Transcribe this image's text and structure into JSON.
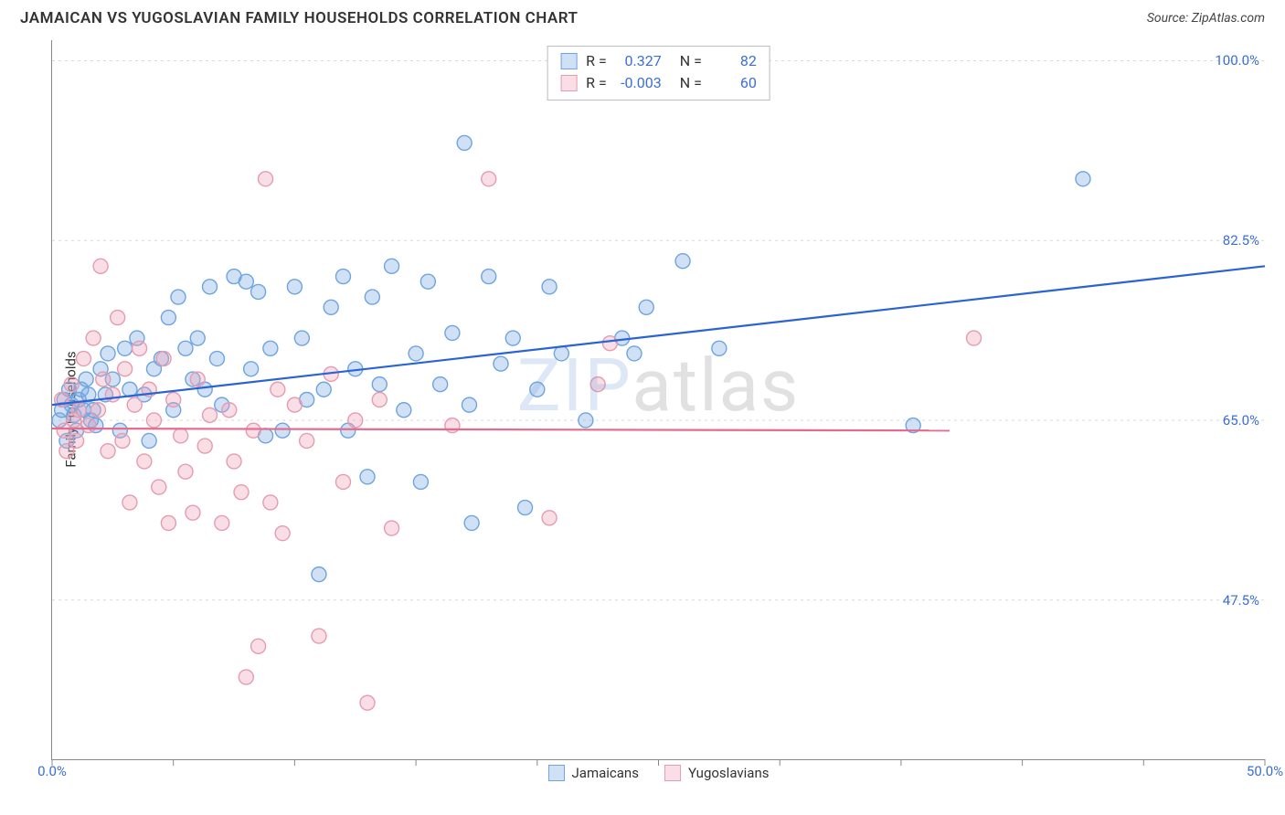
{
  "header": {
    "title": "JAMAICAN VS YUGOSLAVIAN FAMILY HOUSEHOLDS CORRELATION CHART",
    "source_prefix": "Source: ",
    "source_name": "ZipAtlas.com"
  },
  "chart": {
    "type": "scatter",
    "ylabel": "Family Households",
    "watermark_blue": "ZIP",
    "watermark_gray": "atlas",
    "background_color": "#ffffff",
    "grid_color": "#d9d9d9",
    "axis_color": "#888888",
    "tick_label_color": "#3b6fd6",
    "xlim": [
      0,
      50
    ],
    "ylim": [
      32,
      102
    ],
    "x_ticks": [
      0,
      5,
      10,
      15,
      20,
      25,
      30,
      35,
      40,
      45,
      50
    ],
    "x_tick_labels": {
      "0": "0.0%",
      "50": "50.0%"
    },
    "y_gridlines": [
      47.5,
      65.0,
      82.5,
      100.0
    ],
    "y_tick_labels": [
      "47.5%",
      "65.0%",
      "82.5%",
      "100.0%"
    ],
    "marker_radius": 8,
    "marker_stroke_width": 1.4,
    "line_width": 2.2,
    "series": [
      {
        "name": "Jamaicans",
        "fill_color": "rgba(120,170,230,0.35)",
        "stroke_color": "#6fa4df",
        "line_color": "#2a63d4",
        "R": "0.327",
        "N": "82",
        "trend": {
          "x1": 0,
          "y1": 66.5,
          "x2": 50,
          "y2": 80.0
        },
        "points": [
          [
            0.3,
            65.0
          ],
          [
            0.4,
            66.0
          ],
          [
            0.5,
            67.0
          ],
          [
            0.6,
            63.0
          ],
          [
            0.7,
            68.0
          ],
          [
            0.8,
            66.5
          ],
          [
            0.9,
            65.5
          ],
          [
            1.0,
            64.0
          ],
          [
            1.1,
            67.0
          ],
          [
            1.2,
            68.0
          ],
          [
            1.3,
            66.0
          ],
          [
            1.4,
            69.0
          ],
          [
            1.5,
            67.5
          ],
          [
            1.6,
            65.0
          ],
          [
            1.7,
            66.0
          ],
          [
            1.8,
            64.5
          ],
          [
            2.0,
            70.0
          ],
          [
            2.2,
            67.5
          ],
          [
            2.3,
            71.5
          ],
          [
            2.5,
            69.0
          ],
          [
            2.8,
            64.0
          ],
          [
            3.0,
            72.0
          ],
          [
            3.2,
            68.0
          ],
          [
            3.5,
            73.0
          ],
          [
            3.8,
            67.5
          ],
          [
            4.0,
            63.0
          ],
          [
            4.2,
            70.0
          ],
          [
            4.5,
            71.0
          ],
          [
            4.8,
            75.0
          ],
          [
            5.0,
            66.0
          ],
          [
            5.2,
            77.0
          ],
          [
            5.5,
            72.0
          ],
          [
            5.8,
            69.0
          ],
          [
            6.0,
            73.0
          ],
          [
            6.3,
            68.0
          ],
          [
            6.5,
            78.0
          ],
          [
            6.8,
            71.0
          ],
          [
            7.0,
            66.5
          ],
          [
            7.5,
            79.0
          ],
          [
            8.0,
            78.5
          ],
          [
            8.2,
            70.0
          ],
          [
            8.5,
            77.5
          ],
          [
            8.8,
            63.5
          ],
          [
            9.0,
            72.0
          ],
          [
            9.5,
            64.0
          ],
          [
            10.0,
            78.0
          ],
          [
            10.3,
            73.0
          ],
          [
            10.5,
            67.0
          ],
          [
            11.0,
            50.0
          ],
          [
            11.2,
            68.0
          ],
          [
            11.5,
            76.0
          ],
          [
            12.0,
            79.0
          ],
          [
            12.2,
            64.0
          ],
          [
            12.5,
            70.0
          ],
          [
            13.0,
            59.5
          ],
          [
            13.2,
            77.0
          ],
          [
            13.5,
            68.5
          ],
          [
            14.0,
            80.0
          ],
          [
            14.5,
            66.0
          ],
          [
            15.0,
            71.5
          ],
          [
            15.2,
            59.0
          ],
          [
            15.5,
            78.5
          ],
          [
            16.0,
            68.5
          ],
          [
            16.5,
            73.5
          ],
          [
            17.0,
            92.0
          ],
          [
            17.2,
            66.5
          ],
          [
            18.0,
            79.0
          ],
          [
            18.5,
            70.5
          ],
          [
            19.0,
            73.0
          ],
          [
            19.5,
            56.5
          ],
          [
            20.0,
            68.0
          ],
          [
            20.5,
            78.0
          ],
          [
            21.0,
            71.5
          ],
          [
            22.0,
            65.0
          ],
          [
            23.5,
            73.0
          ],
          [
            24.0,
            71.5
          ],
          [
            24.5,
            76.0
          ],
          [
            26.0,
            80.5
          ],
          [
            27.5,
            72.0
          ],
          [
            35.5,
            64.5
          ],
          [
            42.5,
            88.5
          ],
          [
            17.3,
            55.0
          ]
        ]
      },
      {
        "name": "Yugoslavians",
        "fill_color": "rgba(240,160,180,0.35)",
        "stroke_color": "#e59cb0",
        "line_color": "#e46b8d",
        "R": "-0.003",
        "N": "60",
        "trend": {
          "x1": 0,
          "y1": 64.2,
          "x2": 37,
          "y2": 64.0
        },
        "points": [
          [
            0.4,
            67.0
          ],
          [
            0.5,
            64.0
          ],
          [
            0.6,
            62.0
          ],
          [
            0.8,
            68.5
          ],
          [
            0.9,
            65.0
          ],
          [
            1.0,
            63.0
          ],
          [
            1.1,
            66.0
          ],
          [
            1.3,
            71.0
          ],
          [
            1.5,
            64.5
          ],
          [
            1.7,
            73.0
          ],
          [
            1.9,
            66.0
          ],
          [
            2.0,
            80.0
          ],
          [
            2.1,
            69.0
          ],
          [
            2.3,
            62.0
          ],
          [
            2.5,
            67.5
          ],
          [
            2.7,
            75.0
          ],
          [
            2.9,
            63.0
          ],
          [
            3.0,
            70.0
          ],
          [
            3.2,
            57.0
          ],
          [
            3.4,
            66.5
          ],
          [
            3.6,
            72.0
          ],
          [
            3.8,
            61.0
          ],
          [
            4.0,
            68.0
          ],
          [
            4.2,
            65.0
          ],
          [
            4.4,
            58.5
          ],
          [
            4.6,
            71.0
          ],
          [
            4.8,
            55.0
          ],
          [
            5.0,
            67.0
          ],
          [
            5.3,
            63.5
          ],
          [
            5.5,
            60.0
          ],
          [
            5.8,
            56.0
          ],
          [
            6.0,
            69.0
          ],
          [
            6.3,
            62.5
          ],
          [
            6.5,
            65.5
          ],
          [
            7.0,
            55.0
          ],
          [
            7.3,
            66.0
          ],
          [
            7.5,
            61.0
          ],
          [
            7.8,
            58.0
          ],
          [
            8.0,
            40.0
          ],
          [
            8.3,
            64.0
          ],
          [
            8.5,
            43.0
          ],
          [
            8.8,
            88.5
          ],
          [
            9.0,
            57.0
          ],
          [
            9.3,
            68.0
          ],
          [
            9.5,
            54.0
          ],
          [
            10.0,
            66.5
          ],
          [
            10.5,
            63.0
          ],
          [
            11.0,
            44.0
          ],
          [
            11.5,
            69.5
          ],
          [
            12.0,
            59.0
          ],
          [
            12.5,
            65.0
          ],
          [
            13.0,
            37.5
          ],
          [
            13.5,
            67.0
          ],
          [
            14.0,
            54.5
          ],
          [
            16.5,
            64.5
          ],
          [
            18.0,
            88.5
          ],
          [
            20.5,
            55.5
          ],
          [
            22.5,
            68.5
          ],
          [
            23.0,
            72.5
          ],
          [
            38.0,
            73.0
          ]
        ]
      }
    ]
  },
  "stats_box": {
    "R_label": "R",
    "N_label": "N",
    "eq": "="
  },
  "legend": {
    "items": [
      "Jamaicans",
      "Yugoslavians"
    ]
  }
}
